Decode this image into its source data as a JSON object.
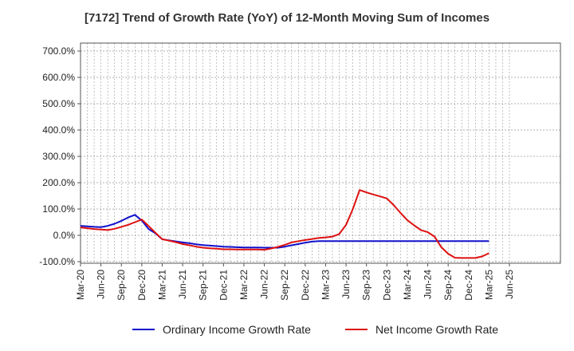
{
  "colors": {
    "ordinary": "#1010cc",
    "net": "#dd1111",
    "grid": "#999999",
    "axis": "#555555"
  },
  "chart_data": {
    "type": "line",
    "title": "[7172]  Trend of Growth Rate (YoY) of 12-Month Moving Sum of Incomes",
    "xlabel": "",
    "ylabel": "",
    "ylim": [
      -100,
      700
    ],
    "y_ticks": [
      -100,
      0,
      100,
      200,
      300,
      400,
      500,
      600,
      700
    ],
    "y_tick_labels": [
      "-100.0%",
      "0.0%",
      "100.0%",
      "200.0%",
      "300.0%",
      "400.0%",
      "500.0%",
      "600.0%",
      "700.0%"
    ],
    "x_tick_labels": [
      "Mar-20",
      "Jun-20",
      "Sep-20",
      "Dec-20",
      "Mar-21",
      "Jun-21",
      "Sep-21",
      "Dec-21",
      "Mar-22",
      "Jun-22",
      "Sep-22",
      "Dec-22",
      "Mar-23",
      "Jun-23",
      "Sep-23",
      "Dec-23",
      "Mar-24",
      "Jun-24",
      "Sep-24",
      "Dec-24",
      "Mar-25",
      "Jun-25"
    ],
    "x": [
      "Mar-20",
      "Apr-20",
      "May-20",
      "Jun-20",
      "Jul-20",
      "Aug-20",
      "Sep-20",
      "Oct-20",
      "Nov-20",
      "Dec-20",
      "Jan-21",
      "Feb-21",
      "Mar-21",
      "Apr-21",
      "May-21",
      "Jun-21",
      "Jul-21",
      "Aug-21",
      "Sep-21",
      "Oct-21",
      "Nov-21",
      "Dec-21",
      "Jan-22",
      "Feb-22",
      "Mar-22",
      "Apr-22",
      "May-22",
      "Jun-22",
      "Jul-22",
      "Aug-22",
      "Sep-22",
      "Oct-22",
      "Nov-22",
      "Dec-22",
      "Jan-23",
      "Feb-23",
      "Mar-23",
      "Apr-23",
      "May-23",
      "Jun-23",
      "Jul-23",
      "Aug-23",
      "Sep-23",
      "Oct-23",
      "Nov-23",
      "Dec-23",
      "Jan-24",
      "Feb-24",
      "Mar-24",
      "Apr-24",
      "May-24",
      "Jun-24",
      "Jul-24",
      "Aug-24",
      "Sep-24",
      "Oct-24",
      "Nov-24",
      "Dec-24",
      "Jan-25",
      "Feb-25",
      "Mar-25"
    ],
    "grid": true,
    "legend_position": "bottom",
    "series": [
      {
        "name": "Ordinary Income Growth Rate",
        "values": [
          36,
          34,
          32,
          31,
          36,
          44,
          55,
          68,
          78,
          56,
          24,
          8,
          -15,
          -19,
          -23,
          -27,
          -30,
          -34,
          -37,
          -39,
          -41,
          -43,
          -44,
          -45,
          -46,
          -46,
          -46,
          -47,
          -47,
          -47,
          -43,
          -38,
          -33,
          -28,
          -24,
          -22,
          -22,
          -22,
          -22,
          -22,
          -22,
          -22,
          -22,
          -22,
          -22,
          -22,
          -22,
          -22,
          -22,
          -22,
          -22,
          -22,
          -22,
          -22,
          -22,
          -22,
          -22,
          -22,
          -22,
          -22,
          -22
        ]
      },
      {
        "name": "Net Income Growth Rate",
        "values": [
          30,
          27,
          24,
          22,
          20,
          25,
          32,
          40,
          50,
          60,
          35,
          10,
          -15,
          -20,
          -26,
          -33,
          -38,
          -43,
          -47,
          -49,
          -51,
          -53,
          -53,
          -54,
          -54,
          -54,
          -54,
          -55,
          -50,
          -44,
          -36,
          -27,
          -22,
          -18,
          -14,
          -10,
          -8,
          -5,
          5,
          40,
          100,
          172,
          163,
          155,
          148,
          140,
          115,
          85,
          58,
          38,
          20,
          12,
          -5,
          -45,
          -70,
          -85,
          -86,
          -86,
          -86,
          -80,
          -68
        ]
      }
    ]
  },
  "legend": {
    "ordinary_label": "Ordinary Income Growth Rate",
    "net_label": "Net Income Growth Rate"
  }
}
